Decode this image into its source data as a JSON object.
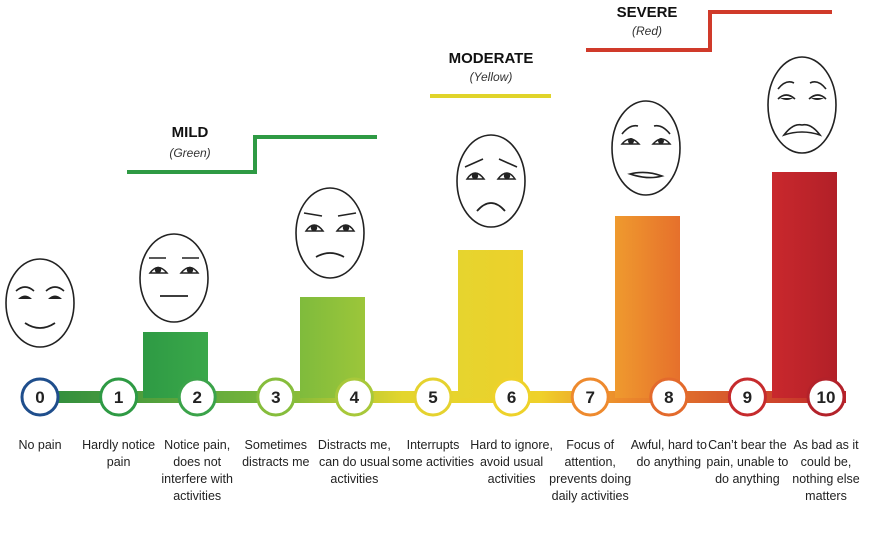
{
  "categories": [
    {
      "name": "MILD",
      "subtitle": "(Green)",
      "color": "#2e9a44"
    },
    {
      "name": "MODERATE",
      "subtitle": "(Yellow)",
      "color": "#e0d42a"
    },
    {
      "name": "SEVERE",
      "subtitle": "(Red)",
      "color": "#d03a2a"
    }
  ],
  "levels": [
    {
      "number": "0",
      "description": "No pain",
      "bar": 0,
      "color": "#1f4e8c",
      "face": "happy"
    },
    {
      "number": "1",
      "description": "Hardly notice pain",
      "bar": 1,
      "color": "#2e9a44",
      "face": "neutral"
    },
    {
      "number": "2",
      "description": "Notice pain, does not interfere with activities",
      "bar": 0,
      "color": "#3ba34a",
      "face": "none"
    },
    {
      "number": "3",
      "description": "Sometimes distracts me",
      "bar": 2,
      "color": "#86bd3c",
      "face": "worried"
    },
    {
      "number": "4",
      "description": "Distracts me, can do usual activities",
      "bar": 0,
      "color": "#a8c83a",
      "face": "none"
    },
    {
      "number": "5",
      "description": "Interrupts some activities",
      "bar": 3,
      "color": "#e5d22f",
      "face": "sad"
    },
    {
      "number": "6",
      "description": "Hard to ignore, avoid usual activities",
      "bar": 0,
      "color": "#eed22a",
      "face": "none"
    },
    {
      "number": "7",
      "description": "Focus of attention, prevents doing daily activities",
      "bar": 4,
      "color": "#ee8a2e",
      "face": "distressed"
    },
    {
      "number": "8",
      "description": "Awful, hard to do anything",
      "bar": 0,
      "color": "#e36a2c",
      "face": "none"
    },
    {
      "number": "9",
      "description": "Can’t bear the pain, unable to do anything",
      "bar": 5,
      "color": "#c62b2d",
      "face": "crying"
    },
    {
      "number": "10",
      "description": "As bad as it could be, nothing else matters",
      "bar": 0,
      "color": "#b3222a",
      "face": "none"
    }
  ]
}
